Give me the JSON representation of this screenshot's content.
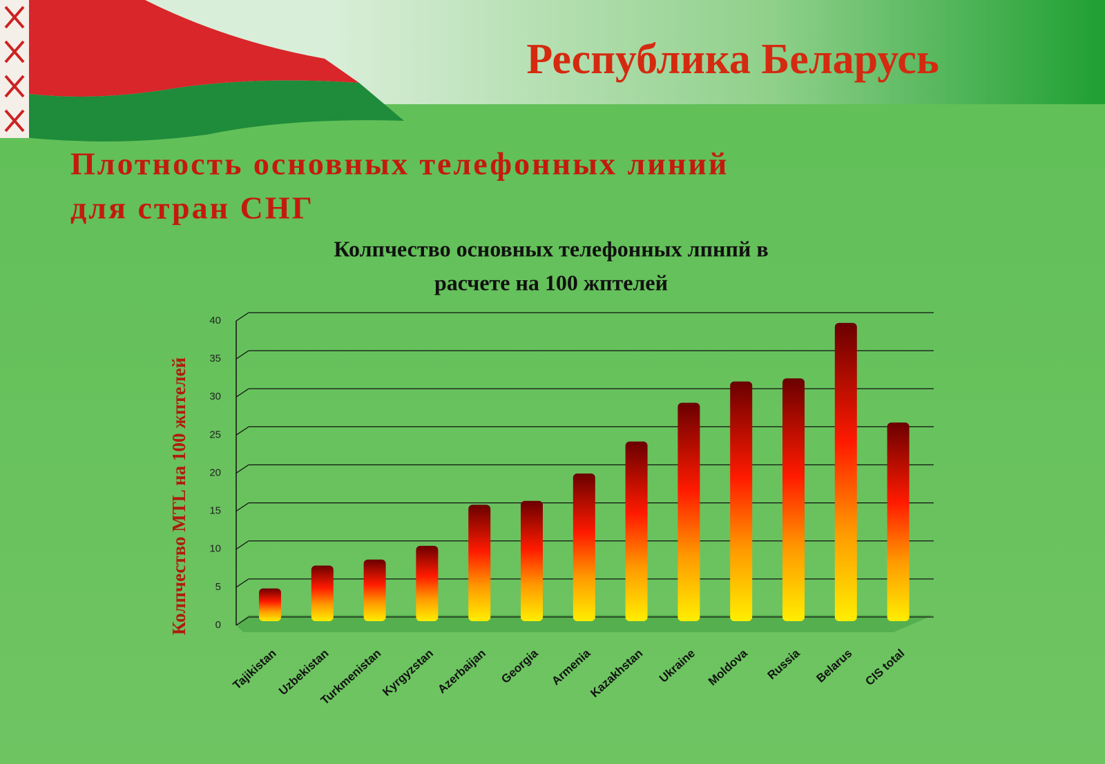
{
  "header": {
    "title": "Республика Беларусь"
  },
  "heading": {
    "lines": [
      "Плотность основных телефонных линий",
      "для стран СНГ"
    ]
  },
  "chart_data": {
    "type": "bar",
    "title_lines": [
      "Колпчество основных телефонных лпнпй в",
      "расчете на 100 жптелей"
    ],
    "y_label": "Колпчество MTL на 100 жптелей",
    "categories": [
      "Tajikistan",
      "Uzbekistan",
      "Turkmenistan",
      "Kyrgyzstan",
      "Azerbaijan",
      "Georgia",
      "Armenia",
      "Kazakhstan",
      "Ukraine",
      "Moldova",
      "Russia",
      "Belarus",
      "CIS total"
    ],
    "values": [
      4.3,
      7.3,
      8.1,
      9.9,
      15.3,
      15.8,
      19.4,
      23.6,
      28.7,
      31.5,
      31.9,
      39.2,
      26.1
    ],
    "ylim": [
      0,
      40
    ],
    "yticks": [
      0,
      5,
      10,
      15,
      20,
      25,
      30,
      35,
      40
    ],
    "grid": true
  }
}
